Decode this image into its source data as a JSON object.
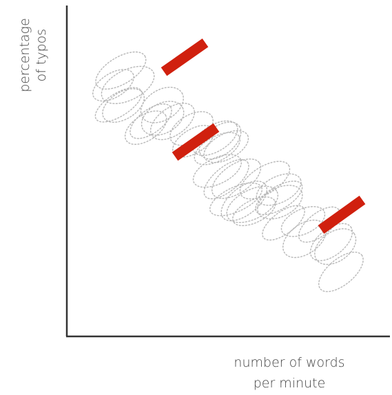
{
  "axes": {
    "y_label": [
      "percentage",
      "of typos"
    ],
    "x_label": [
      "number of words",
      "per minute"
    ]
  }
}
